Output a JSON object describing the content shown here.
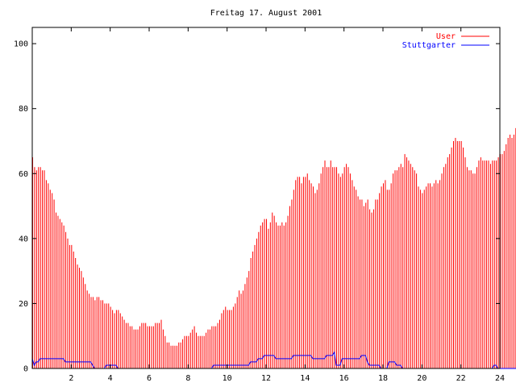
{
  "chart_data": {
    "type": "bar",
    "title": "Freitag 17. August 2001",
    "xlabel": "",
    "ylabel": "",
    "xlim": [
      0,
      24
    ],
    "ylim": [
      0,
      105
    ],
    "xticks": [
      2,
      4,
      6,
      8,
      10,
      12,
      14,
      16,
      18,
      20,
      22,
      24
    ],
    "yticks": [
      0,
      20,
      40,
      60,
      80,
      100
    ],
    "legend_position": "top-right",
    "grid": false,
    "step_hours": 0.1,
    "series": [
      {
        "name": "User",
        "color": "#ff0000",
        "style": "impulses",
        "values": [
          65,
          62,
          61,
          62,
          62,
          61,
          61,
          58,
          57,
          55,
          54,
          52,
          48,
          47,
          46,
          45,
          44,
          42,
          40,
          38,
          38,
          36,
          34,
          32,
          31,
          30,
          28,
          26,
          24,
          23,
          22,
          22,
          21,
          22,
          22,
          21,
          21,
          20,
          20,
          20,
          19,
          18,
          17,
          18,
          18,
          17,
          16,
          15,
          14,
          14,
          13,
          13,
          12,
          12,
          12,
          13,
          14,
          14,
          14,
          13,
          13,
          13,
          13,
          14,
          14,
          14,
          15,
          12,
          10,
          8,
          8,
          7,
          7,
          7,
          7,
          8,
          8,
          9,
          10,
          10,
          10,
          11,
          12,
          13,
          11,
          10,
          10,
          10,
          10,
          11,
          12,
          12,
          13,
          13,
          13,
          14,
          15,
          17,
          18,
          19,
          18,
          18,
          18,
          19,
          20,
          22,
          24,
          23,
          24,
          26,
          28,
          30,
          34,
          36,
          38,
          40,
          42,
          44,
          45,
          46,
          46,
          43,
          45,
          48,
          47,
          45,
          44,
          44,
          45,
          44,
          45,
          47,
          50,
          52,
          55,
          58,
          59,
          59,
          57,
          59,
          59,
          60,
          58,
          57,
          56,
          54,
          55,
          57,
          60,
          62,
          64,
          62,
          62,
          64,
          62,
          62,
          62,
          60,
          59,
          60,
          62,
          63,
          62,
          60,
          58,
          56,
          55,
          53,
          52,
          52,
          50,
          51,
          52,
          49,
          48,
          49,
          52,
          52,
          54,
          56,
          57,
          58,
          55,
          55,
          57,
          60,
          61,
          61,
          62,
          63,
          62,
          66,
          65,
          64,
          63,
          62,
          61,
          60,
          56,
          55,
          54,
          55,
          56,
          57,
          57,
          56,
          57,
          58,
          57,
          58,
          60,
          62,
          63,
          65,
          66,
          68,
          70,
          71,
          70,
          70,
          70,
          68,
          65,
          62,
          61,
          61,
          60,
          60,
          62,
          64,
          65,
          64,
          64,
          64,
          64,
          63,
          64,
          64,
          64,
          65,
          66,
          66,
          67,
          69,
          71,
          72,
          71,
          72,
          74,
          75,
          74,
          73,
          74
        ]
      },
      {
        "name": "Stuttgarter",
        "color": "#0000ff",
        "style": "lines",
        "values": [
          3,
          1,
          2,
          2,
          3,
          3,
          3,
          3,
          3,
          3,
          3,
          3,
          3,
          3,
          3,
          3,
          3,
          2,
          2,
          2,
          2,
          2,
          2,
          2,
          2,
          2,
          2,
          2,
          2,
          2,
          2,
          1,
          0,
          0,
          0,
          0,
          0,
          0,
          1,
          1,
          1,
          1,
          1,
          1,
          0,
          0,
          0,
          0,
          0,
          0,
          0,
          0,
          0,
          0,
          0,
          0,
          0,
          0,
          0,
          0,
          0,
          0,
          0,
          0,
          0,
          0,
          0,
          0,
          0,
          0,
          0,
          0,
          0,
          0,
          0,
          0,
          0,
          0,
          0,
          0,
          0,
          0,
          0,
          0,
          0,
          0,
          0,
          0,
          0,
          0,
          0,
          0,
          0,
          1,
          1,
          1,
          1,
          1,
          1,
          1,
          1,
          1,
          1,
          1,
          1,
          1,
          1,
          1,
          1,
          1,
          1,
          1,
          2,
          2,
          2,
          2,
          3,
          3,
          3,
          4,
          4,
          4,
          4,
          4,
          4,
          3,
          3,
          3,
          3,
          3,
          3,
          3,
          3,
          3,
          4,
          4,
          4,
          4,
          4,
          4,
          4,
          4,
          4,
          4,
          3,
          3,
          3,
          3,
          3,
          3,
          3,
          4,
          4,
          4,
          4,
          5,
          1,
          1,
          1,
          3,
          3,
          3,
          3,
          3,
          3,
          3,
          3,
          3,
          3,
          4,
          4,
          4,
          2,
          1,
          1,
          1,
          1,
          1,
          1,
          0,
          0,
          0,
          0,
          2,
          2,
          2,
          2,
          1,
          1,
          1,
          0,
          0,
          0,
          0,
          0,
          0,
          0,
          0,
          0,
          0,
          0,
          0,
          0,
          0,
          0,
          0,
          0,
          0,
          0,
          0,
          0,
          0,
          0,
          0,
          0,
          0,
          0,
          0,
          0,
          0,
          0,
          0,
          0,
          0,
          0,
          0,
          0,
          0,
          0,
          0,
          0,
          0,
          0,
          0,
          0,
          0,
          0,
          1,
          1,
          0,
          0,
          0,
          0,
          0,
          0,
          0,
          0,
          0,
          0,
          0,
          0,
          0,
          0,
          3,
          4,
          3,
          3,
          3,
          3,
          3,
          3,
          3,
          3,
          3
        ]
      }
    ]
  }
}
